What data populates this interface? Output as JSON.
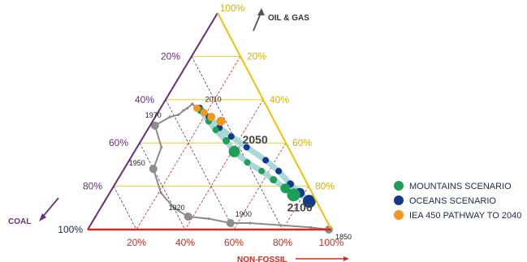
{
  "chart_data": {
    "type": "ternary",
    "axes": {
      "oil_gas": {
        "label": "OIL & GAS",
        "top_tick": "100%",
        "ticks": [
          "20%",
          "40%",
          "60%",
          "80%"
        ]
      },
      "coal": {
        "label": "COAL",
        "bottom_tick": "100%",
        "ticks": [
          "20%",
          "40%",
          "60%",
          "80%"
        ]
      },
      "non_fossil": {
        "label": "NON-FOSSIL",
        "ticks": [
          "20%",
          "40%",
          "60%",
          "80%",
          "100%"
        ]
      }
    },
    "colors": {
      "coal": "#6b2e7a",
      "oil_gas": "#f2c200",
      "non_fossil": "#d9281c",
      "history": "#8c8c8c",
      "mountains": "#1e9f58",
      "oceans": "#123a8c",
      "iea": "#f4951f",
      "path_band": "#a8d8d6"
    },
    "legend": [
      {
        "label": "MOUNTAINS SCENARIO",
        "color": "#1e9f58"
      },
      {
        "label": "OCEANS SCENARIO",
        "color": "#123a8c"
      },
      {
        "label": "IEA 450 PATHWAY TO 2040",
        "color": "#f4951f"
      }
    ],
    "year_labels": [
      "1850",
      "1900",
      "1920",
      "1950",
      "1970",
      "2010",
      "2050",
      "2100"
    ],
    "series": [
      {
        "name": "historical",
        "points": [
          {
            "coal": 0.01,
            "oil_gas": 0.0,
            "non_fossil": 0.99
          },
          {
            "coal": 0.08,
            "oil_gas": 0.01,
            "non_fossil": 0.91
          },
          {
            "coal": 0.2,
            "oil_gas": 0.02,
            "non_fossil": 0.78
          },
          {
            "coal": 0.32,
            "oil_gas": 0.03,
            "non_fossil": 0.65
          },
          {
            "coal": 0.4,
            "oil_gas": 0.03,
            "non_fossil": 0.57
          },
          {
            "coal": 0.48,
            "oil_gas": 0.05,
            "non_fossil": 0.47
          },
          {
            "coal": 0.56,
            "oil_gas": 0.06,
            "non_fossil": 0.38
          },
          {
            "coal": 0.6,
            "oil_gas": 0.1,
            "non_fossil": 0.3
          },
          {
            "coal": 0.62,
            "oil_gas": 0.17,
            "non_fossil": 0.21
          },
          {
            "coal": 0.6,
            "oil_gas": 0.28,
            "non_fossil": 0.12
          },
          {
            "coal": 0.52,
            "oil_gas": 0.38,
            "non_fossil": 0.1
          },
          {
            "coal": 0.5,
            "oil_gas": 0.48,
            "non_fossil": 0.02
          },
          {
            "coal": 0.42,
            "oil_gas": 0.52,
            "non_fossil": 0.06
          },
          {
            "coal": 0.38,
            "oil_gas": 0.53,
            "non_fossil": 0.09
          },
          {
            "coal": 0.35,
            "oil_gas": 0.55,
            "non_fossil": 0.1
          },
          {
            "coal": 0.33,
            "oil_gas": 0.56,
            "non_fossil": 0.11
          },
          {
            "coal": 0.3,
            "oil_gas": 0.58,
            "non_fossil": 0.12
          },
          {
            "coal": 0.29,
            "oil_gas": 0.56,
            "non_fossil": 0.15
          }
        ],
        "markers": [
          {
            "year": "1850",
            "coal": 0.01,
            "oil_gas": 0.0,
            "non_fossil": 0.99
          },
          {
            "year": "1900",
            "coal": 0.4,
            "oil_gas": 0.03,
            "non_fossil": 0.57
          },
          {
            "year": "1920",
            "coal": 0.56,
            "oil_gas": 0.06,
            "non_fossil": 0.38
          },
          {
            "year": "1950",
            "coal": 0.6,
            "oil_gas": 0.28,
            "non_fossil": 0.12
          },
          {
            "year": "1970",
            "coal": 0.5,
            "oil_gas": 0.48,
            "non_fossil": 0.02
          }
        ]
      },
      {
        "name": "IEA 450 pathway",
        "points": [
          {
            "coal": 0.29,
            "oil_gas": 0.56,
            "non_fossil": 0.15
          },
          {
            "coal": 0.27,
            "oil_gas": 0.54,
            "non_fossil": 0.19
          },
          {
            "coal": 0.25,
            "oil_gas": 0.52,
            "non_fossil": 0.23
          },
          {
            "coal": 0.22,
            "oil_gas": 0.5,
            "non_fossil": 0.28
          }
        ]
      },
      {
        "name": "Mountains",
        "points": [
          {
            "coal": 0.28,
            "oil_gas": 0.55,
            "non_fossil": 0.17
          },
          {
            "coal": 0.27,
            "oil_gas": 0.5,
            "non_fossil": 0.23
          },
          {
            "coal": 0.26,
            "oil_gas": 0.46,
            "non_fossil": 0.28
          },
          {
            "coal": 0.24,
            "oil_gas": 0.41,
            "non_fossil": 0.35
          },
          {
            "coal": 0.23,
            "oil_gas": 0.36,
            "non_fossil": 0.41
          },
          {
            "coal": 0.2,
            "oil_gas": 0.31,
            "non_fossil": 0.49
          },
          {
            "coal": 0.16,
            "oil_gas": 0.27,
            "non_fossil": 0.57
          },
          {
            "coal": 0.13,
            "oil_gas": 0.23,
            "non_fossil": 0.64
          },
          {
            "coal": 0.1,
            "oil_gas": 0.19,
            "non_fossil": 0.71
          },
          {
            "coal": 0.08,
            "oil_gas": 0.16,
            "non_fossil": 0.76
          }
        ],
        "labels": [
          {
            "year": "2050",
            "index": 4
          },
          {
            "year": "2100",
            "index": 9
          }
        ]
      },
      {
        "name": "Oceans",
        "points": [
          {
            "coal": 0.28,
            "oil_gas": 0.56,
            "non_fossil": 0.16
          },
          {
            "coal": 0.26,
            "oil_gas": 0.52,
            "non_fossil": 0.22
          },
          {
            "coal": 0.24,
            "oil_gas": 0.47,
            "non_fossil": 0.29
          },
          {
            "coal": 0.21,
            "oil_gas": 0.43,
            "non_fossil": 0.36
          },
          {
            "coal": 0.17,
            "oil_gas": 0.38,
            "non_fossil": 0.45
          },
          {
            "coal": 0.12,
            "oil_gas": 0.32,
            "non_fossil": 0.56
          },
          {
            "coal": 0.09,
            "oil_gas": 0.27,
            "non_fossil": 0.64
          },
          {
            "coal": 0.07,
            "oil_gas": 0.21,
            "non_fossil": 0.72
          },
          {
            "coal": 0.05,
            "oil_gas": 0.17,
            "non_fossil": 0.78
          },
          {
            "coal": 0.03,
            "oil_gas": 0.13,
            "non_fossil": 0.84
          }
        ]
      }
    ]
  }
}
